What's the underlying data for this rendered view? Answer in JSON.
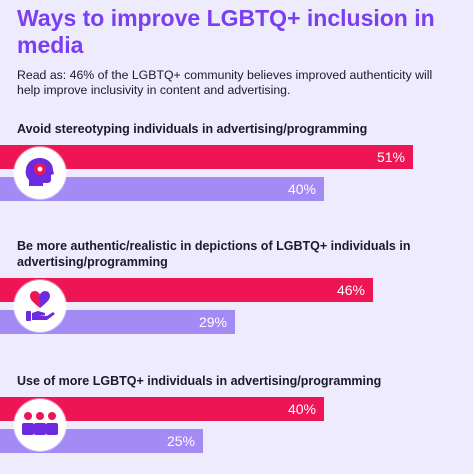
{
  "header": {
    "title": "Ways to improve LGBTQ+ inclusion in media",
    "subtitle": "Read as: 46% of the LGBTQ+ community believes improved authenticity will help improve inclusivity in content and advertising."
  },
  "colors": {
    "background": "#eeebfc",
    "title": "#7a3ff0",
    "series_1": "#ee1554",
    "series_2": "#a48af5",
    "icon_primary": "#6c2be0",
    "icon_accent": "#ee1554"
  },
  "icons": [
    "head-profile-icon",
    "heart-in-hand-icon",
    "people-group-icon"
  ],
  "chart_data": {
    "type": "bar",
    "orientation": "horizontal",
    "categories": [
      "Avoid stereotyping individuals in advertising/programming",
      "Be more authentic/realistic in depictions of LGBTQ+ individuals in advertising/programming",
      "Use of more LGBTQ+ individuals in advertising/programming"
    ],
    "series": [
      {
        "values": [
          51,
          46,
          40
        ],
        "labels": [
          "51%",
          "46%",
          "40%"
        ]
      },
      {
        "values": [
          40,
          29,
          25
        ],
        "labels": [
          "40%",
          "29%",
          "25%"
        ]
      }
    ],
    "unit": "%"
  }
}
